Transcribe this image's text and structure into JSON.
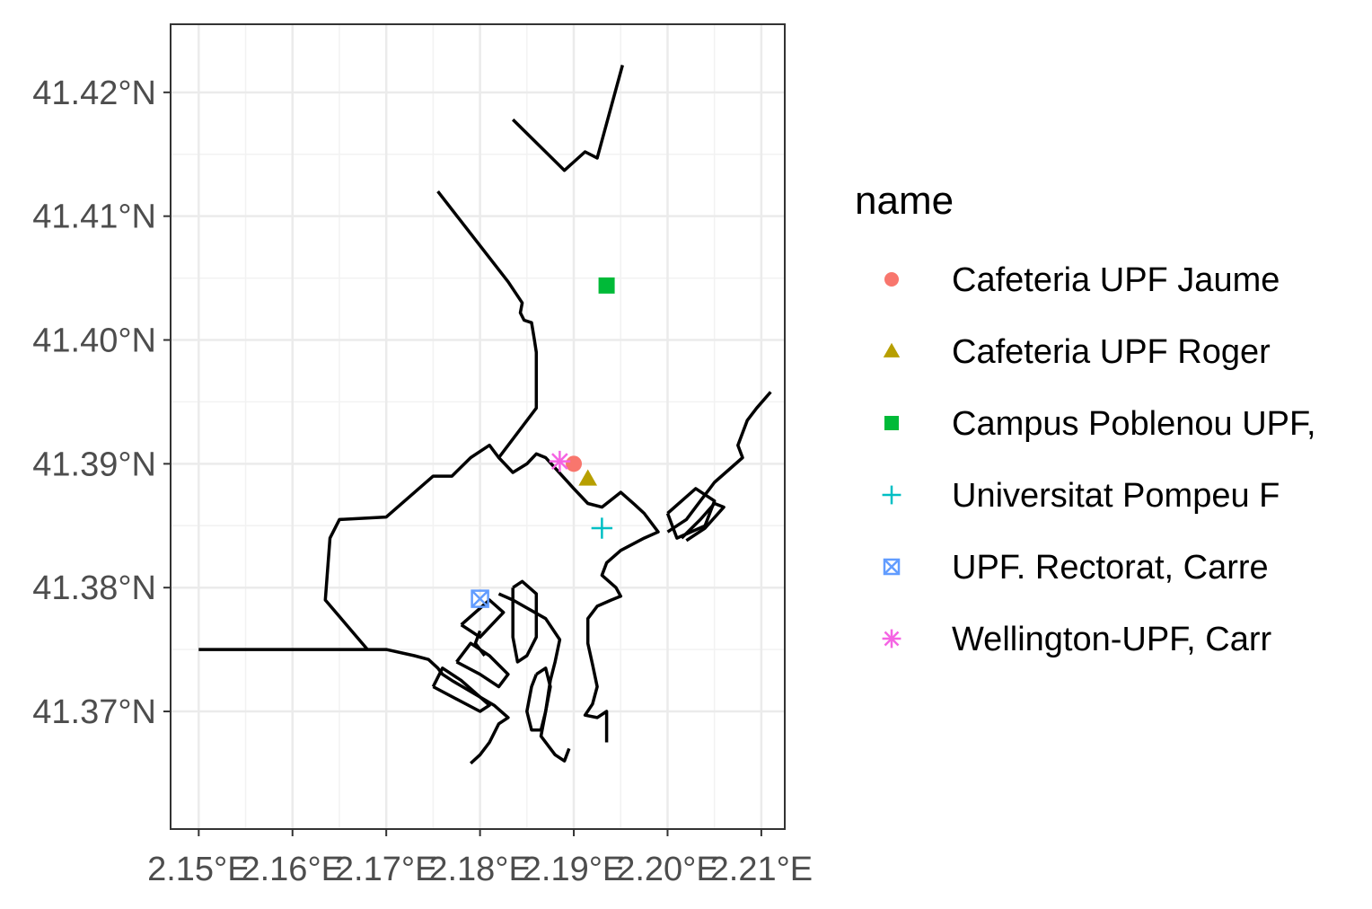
{
  "chart_data": {
    "type": "scatter",
    "title": "",
    "xlabel": "",
    "ylabel": "",
    "xlim": [
      2.147,
      2.2125
    ],
    "ylim": [
      41.3605,
      41.4255
    ],
    "grid": true,
    "legend_position": "right",
    "x_ticks": [
      {
        "value": 2.15,
        "label": "2.15°E"
      },
      {
        "value": 2.16,
        "label": "2.16°E"
      },
      {
        "value": 2.17,
        "label": "2.17°E"
      },
      {
        "value": 2.18,
        "label": "2.18°E"
      },
      {
        "value": 2.19,
        "label": "2.19°E"
      },
      {
        "value": 2.2,
        "label": "2.20°E"
      },
      {
        "value": 2.21,
        "label": "2.21°E"
      }
    ],
    "y_ticks": [
      {
        "value": 41.37,
        "label": "41.37°N"
      },
      {
        "value": 41.38,
        "label": "41.38°N"
      },
      {
        "value": 41.39,
        "label": "41.39°N"
      },
      {
        "value": 41.4,
        "label": "41.40°N"
      },
      {
        "value": 41.41,
        "label": "41.41°N"
      },
      {
        "value": 41.42,
        "label": "41.42°N"
      }
    ],
    "legend_title": "name",
    "series": [
      {
        "name": "Cafeteria UPF Jaume",
        "shape": "circle",
        "color": "#F8766D",
        "x": 2.19,
        "y": 41.39
      },
      {
        "name": "Cafeteria UPF Roger",
        "shape": "triangle",
        "color": "#B79F00",
        "x": 2.1915,
        "y": 41.3888
      },
      {
        "name": "Campus Poblenou UPF,",
        "shape": "square",
        "color": "#00BA38",
        "x": 2.1935,
        "y": 41.4044
      },
      {
        "name": "Universitat Pompeu F",
        "shape": "plus",
        "color": "#00BFC4",
        "x": 2.193,
        "y": 41.3848
      },
      {
        "name": "UPF. Rectorat, Carre",
        "shape": "square-cross",
        "color": "#619CFF",
        "x": 2.18,
        "y": 41.3791
      },
      {
        "name": "Wellington-UPF, Carr",
        "shape": "asterisk",
        "color": "#F564E3",
        "x": 2.1885,
        "y": 41.3902
      }
    ],
    "boundary_lines": [
      [
        [
          2.1835,
          41.4178
        ],
        [
          2.189,
          41.4137
        ],
        [
          2.1912,
          41.4152
        ],
        [
          2.1925,
          41.4147
        ],
        [
          2.1952,
          41.4222
        ]
      ],
      [
        [
          2.1755,
          41.412
        ],
        [
          2.183,
          41.4047
        ],
        [
          2.1845,
          41.403
        ],
        [
          2.1843,
          41.4022
        ],
        [
          2.1847,
          41.4016
        ],
        [
          2.1855,
          41.4014
        ],
        [
          2.1858,
          41.4
        ],
        [
          2.186,
          41.399
        ],
        [
          2.186,
          41.3945
        ],
        [
          2.182,
          41.3905
        ],
        [
          2.1835,
          41.3893
        ],
        [
          2.185,
          41.39
        ],
        [
          2.186,
          41.3908
        ],
        [
          2.187,
          41.3905
        ],
        [
          2.19,
          41.388
        ],
        [
          2.1915,
          41.3868
        ],
        [
          2.193,
          41.3865
        ],
        [
          2.195,
          41.3877
        ],
        [
          2.1965,
          41.3867
        ],
        [
          2.1975,
          41.386
        ],
        [
          2.199,
          41.3845
        ],
        [
          2.1975,
          41.384
        ],
        [
          2.195,
          41.383
        ],
        [
          2.1935,
          41.382
        ],
        [
          2.193,
          41.381
        ],
        [
          2.1945,
          41.38
        ],
        [
          2.195,
          41.3793
        ],
        [
          2.194,
          41.379
        ],
        [
          2.1925,
          41.3785
        ],
        [
          2.1915,
          41.3775
        ],
        [
          2.1915,
          41.3755
        ],
        [
          2.192,
          41.3738
        ],
        [
          2.1925,
          41.372
        ],
        [
          2.192,
          41.3706
        ],
        [
          2.1912,
          41.3697
        ],
        [
          2.1925,
          41.3695
        ],
        [
          2.1935,
          41.37
        ],
        [
          2.1935,
          41.3675
        ]
      ],
      [
        [
          2.15,
          41.375
        ],
        [
          2.168,
          41.375
        ],
        [
          2.17,
          41.375
        ],
        [
          2.173,
          41.3745
        ],
        [
          2.1745,
          41.3742
        ],
        [
          2.1755,
          41.3735
        ],
        [
          2.176,
          41.373
        ],
        [
          2.177,
          41.3725
        ],
        [
          2.1815,
          41.3705
        ],
        [
          2.183,
          41.3695
        ],
        [
          2.182,
          41.369
        ],
        [
          2.181,
          41.3675
        ],
        [
          2.18,
          41.3665
        ],
        [
          2.179,
          41.3658
        ]
      ],
      [
        [
          2.168,
          41.375
        ],
        [
          2.1635,
          41.379
        ],
        [
          2.164,
          41.384
        ],
        [
          2.165,
          41.3855
        ],
        [
          2.17,
          41.3857
        ],
        [
          2.175,
          41.389
        ],
        [
          2.177,
          41.389
        ],
        [
          2.179,
          41.3905
        ],
        [
          2.181,
          41.3915
        ],
        [
          2.182,
          41.3905
        ]
      ],
      [
        [
          2.2,
          41.3845
        ],
        [
          2.202,
          41.3855
        ],
        [
          2.2035,
          41.387
        ],
        [
          2.2045,
          41.388
        ],
        [
          2.205,
          41.3885
        ],
        [
          2.208,
          41.3905
        ],
        [
          2.2075,
          41.3915
        ],
        [
          2.2085,
          41.3935
        ],
        [
          2.2095,
          41.3945
        ],
        [
          2.211,
          41.3958
        ]
      ],
      [
        [
          2.2,
          41.386
        ],
        [
          2.203,
          41.388
        ],
        [
          2.205,
          41.387
        ],
        [
          2.204,
          41.385
        ],
        [
          2.201,
          41.384
        ],
        [
          2.2,
          41.386
        ]
      ],
      [
        [
          2.2015,
          41.384
        ],
        [
          2.2035,
          41.3855
        ],
        [
          2.205,
          41.3868
        ],
        [
          2.206,
          41.3865
        ],
        [
          2.204,
          41.3848
        ],
        [
          2.202,
          41.3838
        ]
      ],
      [
        [
          2.182,
          41.3795
        ],
        [
          2.1835,
          41.379
        ],
        [
          2.187,
          41.3775
        ],
        [
          2.1885,
          41.3758
        ],
        [
          2.188,
          41.374
        ],
        [
          2.1875,
          41.3725
        ],
        [
          2.187,
          41.37
        ],
        [
          2.1865,
          41.368
        ],
        [
          2.188,
          41.3665
        ],
        [
          2.189,
          41.366
        ],
        [
          2.1895,
          41.367
        ]
      ],
      [
        [
          2.178,
          41.377
        ],
        [
          2.181,
          41.379
        ],
        [
          2.1825,
          41.378
        ],
        [
          2.18,
          41.376
        ],
        [
          2.178,
          41.377
        ]
      ],
      [
        [
          2.1775,
          41.374
        ],
        [
          2.179,
          41.3755
        ],
        [
          2.181,
          41.3745
        ],
        [
          2.183,
          41.373
        ],
        [
          2.182,
          41.372
        ],
        [
          2.18,
          41.373
        ],
        [
          2.1775,
          41.374
        ]
      ],
      [
        [
          2.175,
          41.372
        ],
        [
          2.176,
          41.3735
        ],
        [
          2.178,
          41.3725
        ],
        [
          2.181,
          41.3705
        ],
        [
          2.18,
          41.37
        ],
        [
          2.1775,
          41.371
        ],
        [
          2.175,
          41.372
        ]
      ],
      [
        [
          2.1835,
          41.38
        ],
        [
          2.1845,
          41.3805
        ],
        [
          2.186,
          41.3795
        ],
        [
          2.186,
          41.376
        ],
        [
          2.185,
          41.3745
        ],
        [
          2.184,
          41.374
        ],
        [
          2.1835,
          41.376
        ],
        [
          2.1835,
          41.38
        ]
      ],
      [
        [
          2.186,
          41.373
        ],
        [
          2.187,
          41.3735
        ],
        [
          2.1875,
          41.372
        ],
        [
          2.187,
          41.37
        ],
        [
          2.1865,
          41.3685
        ],
        [
          2.1855,
          41.3685
        ],
        [
          2.185,
          41.37
        ],
        [
          2.1855,
          41.372
        ],
        [
          2.186,
          41.373
        ]
      ],
      [
        [
          2.18,
          41.3765
        ],
        [
          2.1795,
          41.3755
        ],
        [
          2.1805,
          41.3745
        ]
      ]
    ]
  }
}
